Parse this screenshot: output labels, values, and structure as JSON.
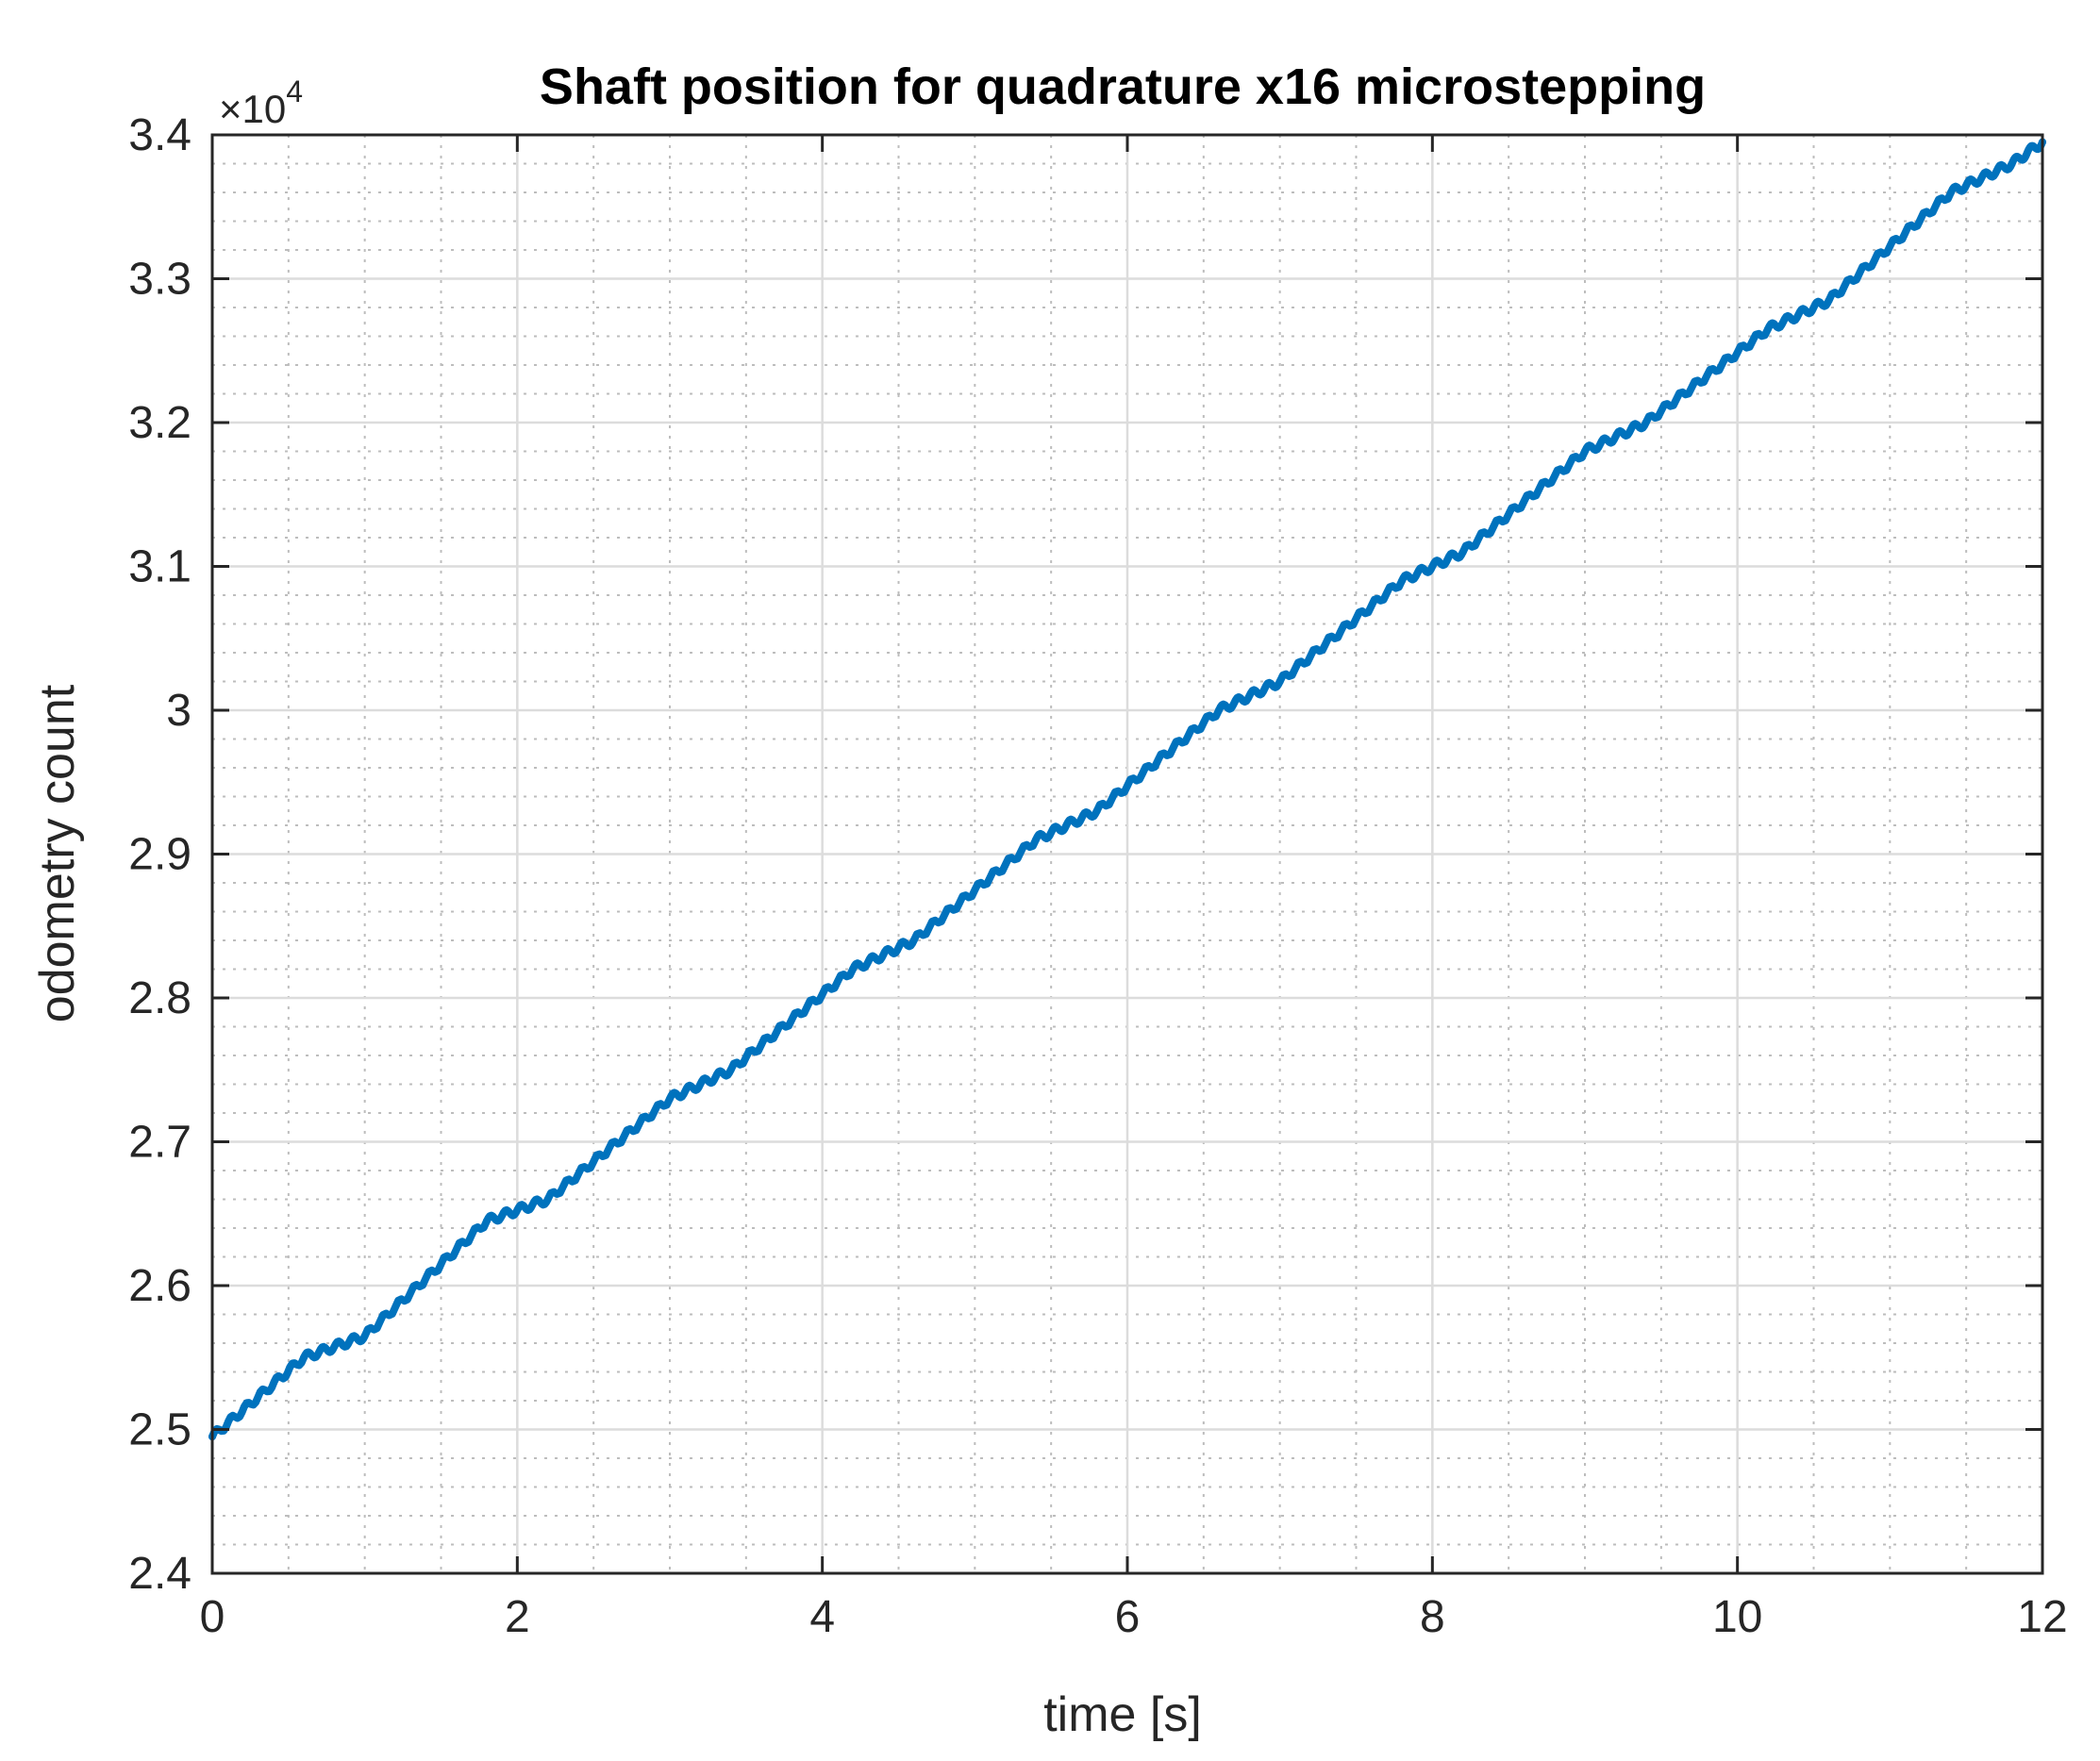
{
  "chart_data": {
    "type": "line",
    "title": "Shaft position for quadrature x16 microstepping",
    "xlabel": "time [s]",
    "ylabel": "odometry count",
    "y_multiplier": {
      "base": "×10",
      "exponent": "4"
    },
    "xlim": [
      0,
      12
    ],
    "ylim": [
      24000,
      34000
    ],
    "x_ticks": [
      0,
      2,
      4,
      6,
      8,
      10,
      12
    ],
    "x_tick_labels": [
      "0",
      "2",
      "4",
      "6",
      "8",
      "10",
      "12"
    ],
    "y_ticks": [
      24000,
      25000,
      26000,
      27000,
      28000,
      29000,
      30000,
      31000,
      32000,
      33000,
      34000
    ],
    "y_tick_labels": [
      "2.4",
      "2.5",
      "2.6",
      "2.7",
      "2.8",
      "2.9",
      "3",
      "3.1",
      "3.2",
      "3.3",
      "3.4"
    ],
    "grid": true,
    "minor_grid": true,
    "series": [
      {
        "color": "#0072BD",
        "x": [
          0,
          0.6,
          1.0,
          1.8,
          2.2,
          3.0,
          3.4,
          4.2,
          4.6,
          5.4,
          5.8,
          6.6,
          7.0,
          7.8,
          8.2,
          9.0,
          9.4,
          10.2,
          10.6,
          11.4,
          11.8,
          12.0
        ],
        "y": [
          24950,
          25500,
          25650,
          26450,
          26600,
          27300,
          27500,
          28200,
          28400,
          29100,
          29300,
          30000,
          30200,
          30900,
          31100,
          31800,
          32000,
          32650,
          32850,
          33600,
          33800,
          33950
        ]
      }
    ]
  }
}
